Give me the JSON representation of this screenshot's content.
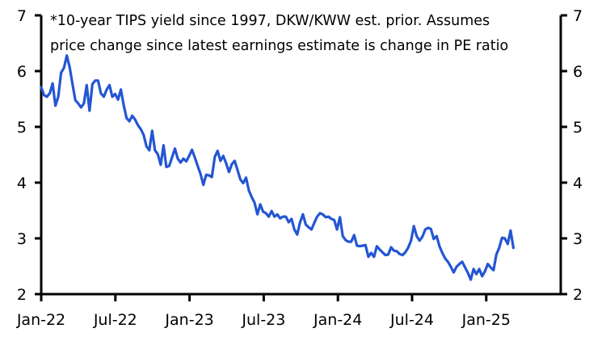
{
  "chart_data": {
    "type": "line",
    "title": "",
    "annotation_lines": [
      "*10-year TIPS yield since 1997, DKW/KWW est. prior. Assumes",
      "price change since latest earnings estimate is change in PE ratio"
    ],
    "xlabel": "",
    "ylabel": "",
    "ylim": [
      2,
      7
    ],
    "y_ticks": [
      "2",
      "3",
      "4",
      "5",
      "6",
      "7"
    ],
    "y_ticks_right": [
      "2",
      "3",
      "4",
      "5",
      "6",
      "7"
    ],
    "x_ticks": [
      "Jan-22",
      "Jul-22",
      "Jan-23",
      "Jul-23",
      "Jan-24",
      "Jul-24",
      "Jan-25"
    ],
    "x_range_months": [
      0,
      42
    ],
    "grid": false,
    "legend": "none",
    "series": [
      {
        "name": "series-1",
        "color": "#2456d3",
        "x_start_month": 0,
        "x_step_months": 0.2301,
        "values": [
          5.71,
          5.57,
          5.54,
          5.6,
          5.78,
          5.38,
          5.54,
          5.97,
          6.06,
          6.28,
          6.07,
          5.77,
          5.48,
          5.42,
          5.35,
          5.42,
          5.75,
          5.29,
          5.77,
          5.83,
          5.83,
          5.6,
          5.54,
          5.67,
          5.75,
          5.54,
          5.59,
          5.49,
          5.67,
          5.39,
          5.16,
          5.1,
          5.2,
          5.13,
          5.03,
          4.96,
          4.86,
          4.65,
          4.58,
          4.93,
          4.58,
          4.51,
          4.32,
          4.67,
          4.28,
          4.3,
          4.45,
          4.61,
          4.43,
          4.36,
          4.43,
          4.38,
          4.48,
          4.59,
          4.45,
          4.3,
          4.16,
          3.96,
          4.14,
          4.13,
          4.1,
          4.46,
          4.57,
          4.39,
          4.48,
          4.35,
          4.19,
          4.33,
          4.39,
          4.23,
          4.06,
          3.99,
          4.09,
          3.86,
          3.74,
          3.64,
          3.43,
          3.61,
          3.48,
          3.45,
          3.39,
          3.49,
          3.39,
          3.43,
          3.36,
          3.39,
          3.39,
          3.29,
          3.35,
          3.16,
          3.07,
          3.29,
          3.43,
          3.25,
          3.2,
          3.16,
          3.28,
          3.39,
          3.45,
          3.43,
          3.38,
          3.39,
          3.35,
          3.33,
          3.16,
          3.38,
          3.04,
          2.97,
          2.94,
          2.94,
          3.06,
          2.87,
          2.86,
          2.87,
          2.88,
          2.67,
          2.74,
          2.67,
          2.86,
          2.8,
          2.75,
          2.7,
          2.71,
          2.84,
          2.78,
          2.77,
          2.72,
          2.7,
          2.75,
          2.83,
          2.96,
          3.22,
          3.04,
          2.96,
          3.03,
          3.16,
          3.19,
          3.17,
          2.99,
          3.04,
          2.86,
          2.74,
          2.64,
          2.58,
          2.49,
          2.39,
          2.49,
          2.54,
          2.58,
          2.48,
          2.38,
          2.26,
          2.45,
          2.36,
          2.45,
          2.32,
          2.41,
          2.54,
          2.48,
          2.43,
          2.71,
          2.83,
          3.01,
          3.0,
          2.9,
          3.14,
          2.83
        ]
      }
    ]
  }
}
